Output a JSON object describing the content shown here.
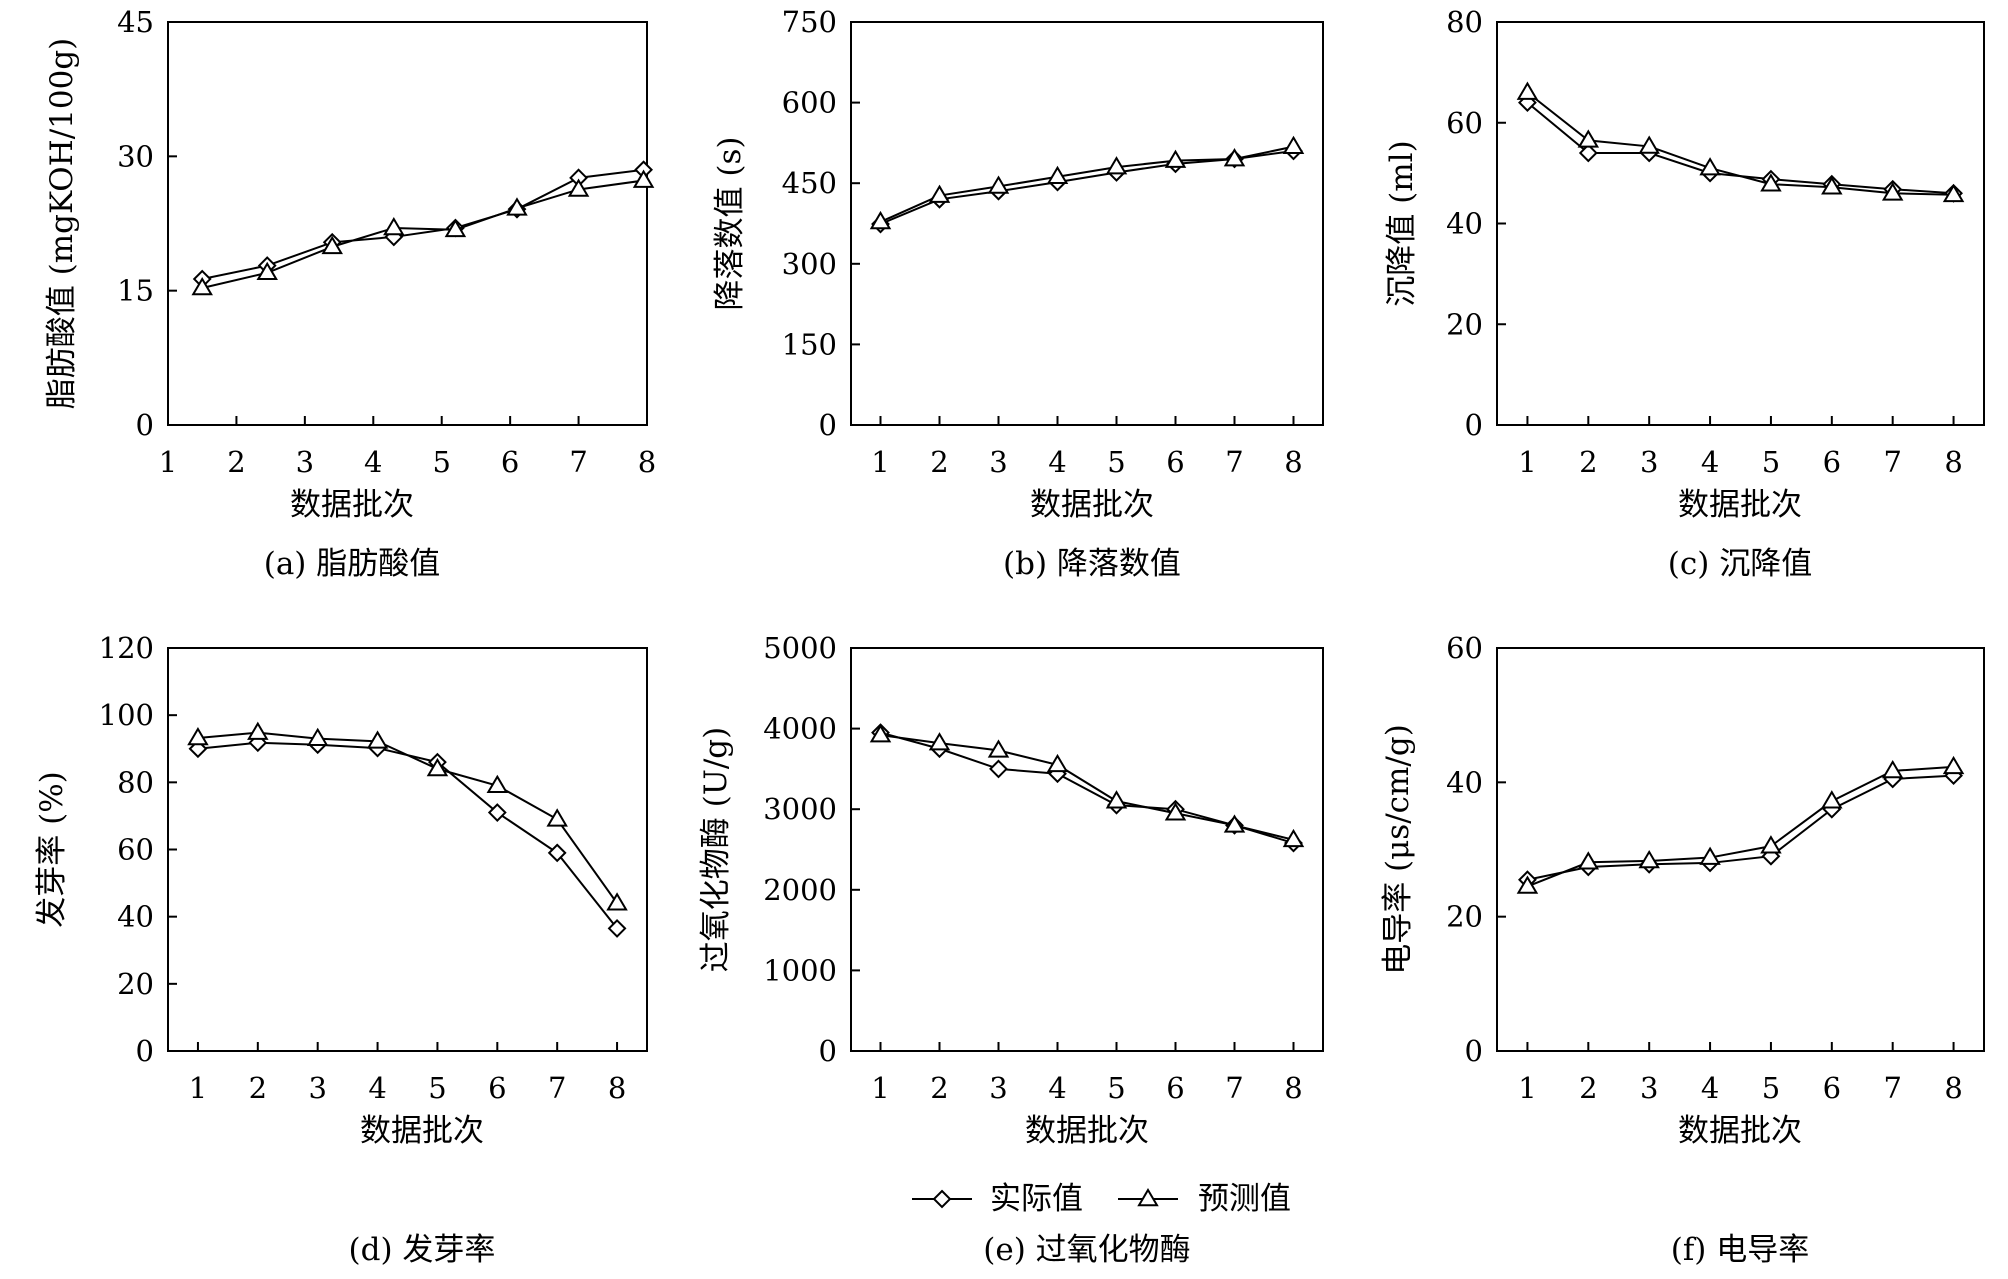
{
  "legend": {
    "actual_label": "实际值",
    "predicted_label": "预测值"
  },
  "style": {
    "line_color": "#000000",
    "background": "#ffffff"
  },
  "chart_data": [
    {
      "type": "line",
      "caption": "(a) 脂肪酸值",
      "xlabel": "数据批次",
      "ylabel": "脂肪酸值 (mgKOH/100g)",
      "xlim": [
        1,
        8
      ],
      "ylim": [
        0,
        45
      ],
      "xticks": [
        "1",
        "2",
        "3",
        "4",
        "5",
        "6",
        "7",
        "8"
      ],
      "yticks": [
        "0",
        "15",
        "30",
        "45"
      ],
      "series": [
        {
          "name": "实际值",
          "marker": "diamond",
          "x": [
            1.5,
            2.45,
            3.4,
            4.3,
            5.2,
            6.1,
            7.0,
            7.95
          ],
          "y": [
            16.3,
            17.8,
            20.4,
            21.0,
            22.0,
            24.1,
            27.6,
            28.5
          ]
        },
        {
          "name": "预测值",
          "marker": "triangle",
          "x": [
            1.5,
            2.45,
            3.4,
            4.3,
            5.2,
            6.1,
            7.0,
            7.95
          ],
          "y": [
            15.3,
            17.0,
            19.9,
            22.0,
            21.8,
            24.2,
            26.3,
            27.3
          ]
        }
      ]
    },
    {
      "type": "line",
      "caption": "(b) 降落数值",
      "xlabel": "数据批次",
      "ylabel": "降落数值 (s)",
      "xlim": [
        0.5,
        8.5
      ],
      "ylim": [
        0,
        750
      ],
      "xticks": [
        "1",
        "2",
        "3",
        "4",
        "5",
        "6",
        "7",
        "8"
      ],
      "yticks": [
        "0",
        "150",
        "300",
        "450",
        "600",
        "750"
      ],
      "series": [
        {
          "name": "实际值",
          "marker": "diamond",
          "x": [
            1,
            2,
            3,
            4,
            5,
            6,
            7,
            8
          ],
          "y": [
            374,
            420,
            435,
            452,
            470,
            486,
            495,
            510
          ]
        },
        {
          "name": "预测值",
          "marker": "triangle",
          "x": [
            1,
            2,
            3,
            4,
            5,
            6,
            7,
            8
          ],
          "y": [
            378,
            427,
            444,
            462,
            480,
            492,
            495,
            518
          ]
        }
      ]
    },
    {
      "type": "line",
      "caption": "(c) 沉降值",
      "xlabel": "数据批次",
      "ylabel": "沉降值 (ml)",
      "xlim": [
        0.5,
        8.5
      ],
      "ylim": [
        0,
        80
      ],
      "xticks": [
        "1",
        "2",
        "3",
        "4",
        "5",
        "6",
        "7",
        "8"
      ],
      "yticks": [
        "0",
        "20",
        "40",
        "60",
        "80"
      ],
      "series": [
        {
          "name": "实际值",
          "marker": "diamond",
          "x": [
            1,
            2,
            3,
            4,
            5,
            6,
            7,
            8
          ],
          "y": [
            64.0,
            54.0,
            54.0,
            50.0,
            48.8,
            47.8,
            46.8,
            46.0
          ]
        },
        {
          "name": "预测值",
          "marker": "triangle",
          "x": [
            1,
            2,
            3,
            4,
            5,
            6,
            7,
            8
          ],
          "y": [
            66.0,
            56.5,
            55.3,
            51.0,
            47.8,
            47.2,
            46.0,
            45.7
          ]
        }
      ]
    },
    {
      "type": "line",
      "caption": "(d) 发芽率",
      "xlabel": "数据批次",
      "ylabel": "发芽率 (%)",
      "xlim": [
        0.5,
        8.5
      ],
      "ylim": [
        0,
        120
      ],
      "xticks": [
        "1",
        "2",
        "3",
        "4",
        "5",
        "6",
        "7",
        "8"
      ],
      "yticks": [
        "0",
        "20",
        "40",
        "60",
        "80",
        "100",
        "120"
      ],
      "series": [
        {
          "name": "实际值",
          "marker": "diamond",
          "x": [
            1,
            2,
            3,
            4,
            5,
            6,
            7,
            8
          ],
          "y": [
            90.0,
            91.8,
            91.2,
            90.2,
            86.0,
            71.0,
            59.0,
            36.5
          ]
        },
        {
          "name": "预测值",
          "marker": "triangle",
          "x": [
            1,
            2,
            3,
            4,
            5,
            6,
            7,
            8
          ],
          "y": [
            93.2,
            94.8,
            93.0,
            92.2,
            84.0,
            79.0,
            69.0,
            44.0
          ]
        }
      ]
    },
    {
      "type": "line",
      "caption": "(e) 过氧化物酶",
      "xlabel": "数据批次",
      "ylabel": "过氧化物酶 (U/g)",
      "xlim": [
        0.5,
        8.5
      ],
      "ylim": [
        0,
        5000
      ],
      "xticks": [
        "1",
        "2",
        "3",
        "4",
        "5",
        "6",
        "7",
        "8"
      ],
      "yticks": [
        "0",
        "1000",
        "2000",
        "3000",
        "4000",
        "5000"
      ],
      "series": [
        {
          "name": "实际值",
          "marker": "diamond",
          "x": [
            1,
            2,
            3,
            4,
            5,
            6,
            7,
            8
          ],
          "y": [
            3950,
            3750,
            3500,
            3440,
            3050,
            3000,
            2800,
            2580
          ]
        },
        {
          "name": "预测值",
          "marker": "triangle",
          "x": [
            1,
            2,
            3,
            4,
            5,
            6,
            7,
            8
          ],
          "y": [
            3920,
            3820,
            3730,
            3550,
            3100,
            2950,
            2800,
            2620
          ]
        }
      ]
    },
    {
      "type": "line",
      "caption": "(f) 电导率",
      "xlabel": "数据批次",
      "ylabel": "电导率 (μs/cm/g)",
      "xlim": [
        0.5,
        8.5
      ],
      "ylim": [
        0,
        60
      ],
      "xticks": [
        "1",
        "2",
        "3",
        "4",
        "5",
        "6",
        "7",
        "8"
      ],
      "yticks": [
        "0",
        "20",
        "40",
        "60"
      ],
      "series": [
        {
          "name": "实际值",
          "marker": "diamond",
          "x": [
            1,
            2,
            3,
            4,
            5,
            6,
            7,
            8
          ],
          "y": [
            25.5,
            27.4,
            27.8,
            28.0,
            29.0,
            36.0,
            40.5,
            41.0
          ]
        },
        {
          "name": "预测值",
          "marker": "triangle",
          "x": [
            1,
            2,
            3,
            4,
            5,
            6,
            7,
            8
          ],
          "y": [
            24.5,
            28.1,
            28.3,
            28.8,
            30.5,
            37.2,
            41.7,
            42.3
          ]
        }
      ]
    }
  ]
}
